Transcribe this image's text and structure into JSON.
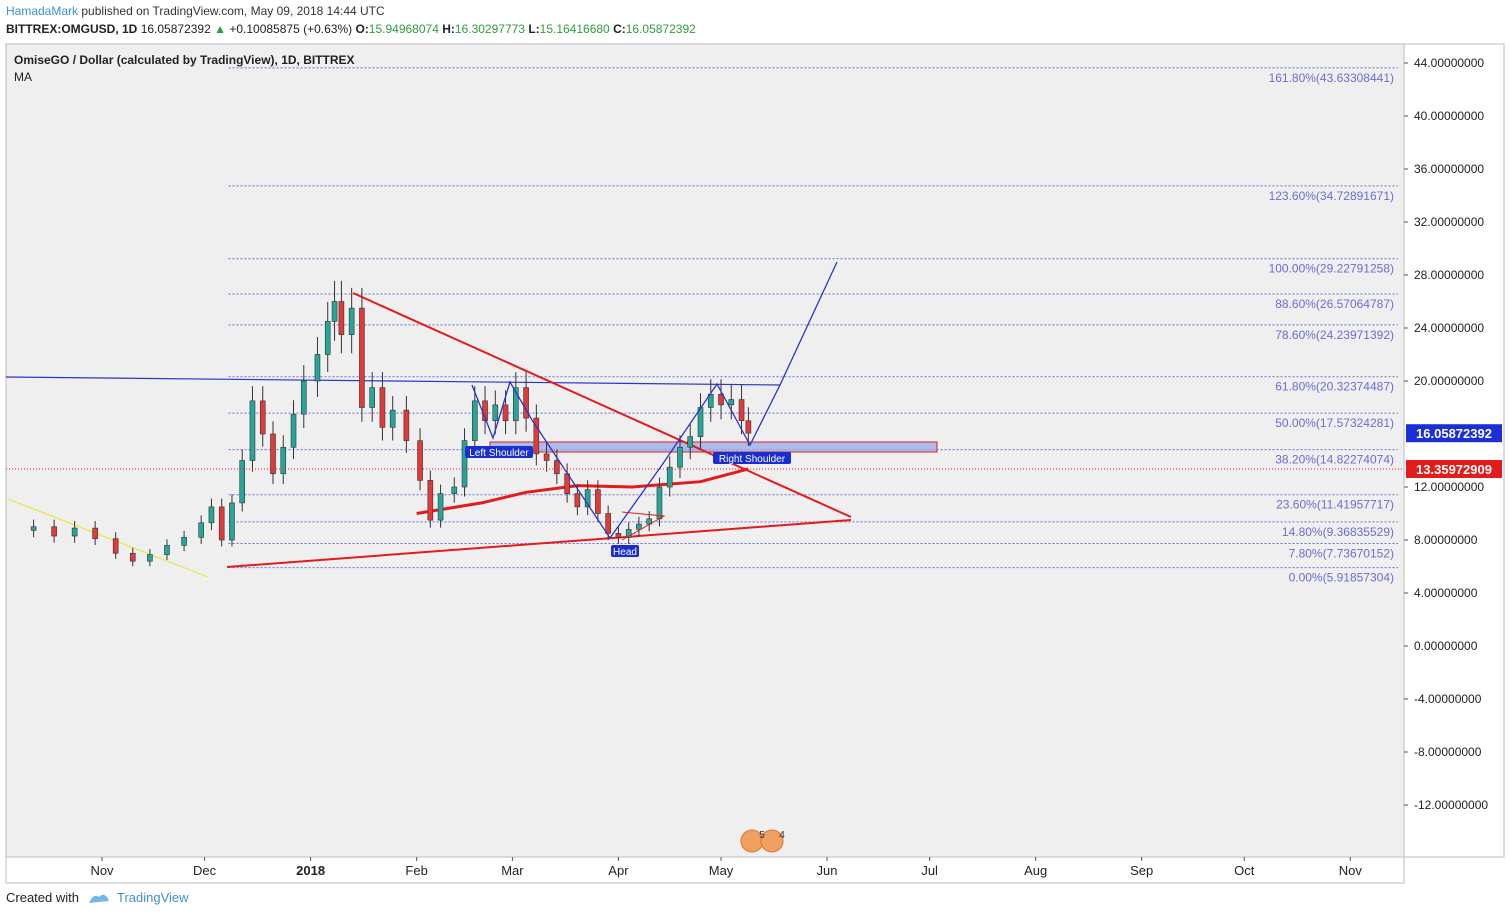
{
  "header": {
    "author": "HamadaMark",
    "published": "published on TradingView.com, May 09, 2018 14:44 UTC",
    "symbol": "BITTREX:OMGUSD, 1D",
    "last": "16.05872392",
    "change": "+0.10085875 (+0.63%)",
    "o_label": "O:",
    "o_val": "15.94968074",
    "h_label": "H:",
    "h_val": "16.30297773",
    "l_label": "L:",
    "l_val": "15.16416680",
    "c_label": "C:",
    "c_val": "16.05872392"
  },
  "legend": {
    "title": "OmiseGO / Dollar (calculated by TradingView), 1D, BITTREX",
    "indicator": "MA"
  },
  "footer": {
    "created_with": "Created with",
    "brand": "TradingView"
  },
  "colors": {
    "bull": "#26a69a",
    "bear": "#e03b3b",
    "fib": "#6b6bd6",
    "blue": "#2a35c9",
    "red": "#e31b1b",
    "yellow": "#e8e840",
    "pane_bg": "#efefef"
  },
  "chart_data": {
    "type": "candlestick",
    "ylim": [
      -15.5,
      45.5
    ],
    "y_ticks": [
      {
        "v": 44,
        "label": "44.00000000"
      },
      {
        "v": 40,
        "label": "40.00000000"
      },
      {
        "v": 36,
        "label": "36.00000000"
      },
      {
        "v": 32,
        "label": "32.00000000"
      },
      {
        "v": 28,
        "label": "28.00000000"
      },
      {
        "v": 24,
        "label": "24.00000000"
      },
      {
        "v": 20,
        "label": "20.00000000"
      },
      {
        "v": 12,
        "label": "12.00000000"
      },
      {
        "v": 8,
        "label": "8.00000000"
      },
      {
        "v": 4,
        "label": "4.00000000"
      },
      {
        "v": 0,
        "label": "0.00000000"
      },
      {
        "v": -4,
        "label": "-4.00000000"
      },
      {
        "v": -8,
        "label": "-8.00000000"
      },
      {
        "v": -12,
        "label": "-12.00000000"
      }
    ],
    "x_ticks": [
      {
        "d": "2017-11-01",
        "label": "Nov",
        "bold": false
      },
      {
        "d": "2017-12-01",
        "label": "Dec",
        "bold": false
      },
      {
        "d": "2018-01-01",
        "label": "2018",
        "bold": true
      },
      {
        "d": "2018-02-01",
        "label": "Feb",
        "bold": false
      },
      {
        "d": "2018-03-01",
        "label": "Mar",
        "bold": false
      },
      {
        "d": "2018-04-01",
        "label": "Apr",
        "bold": false
      },
      {
        "d": "2018-05-01",
        "label": "May",
        "bold": false
      },
      {
        "d": "2018-06-01",
        "label": "Jun",
        "bold": false
      },
      {
        "d": "2018-07-01",
        "label": "Jul",
        "bold": false
      },
      {
        "d": "2018-08-01",
        "label": "Aug",
        "bold": false
      },
      {
        "d": "2018-09-01",
        "label": "Sep",
        "bold": false
      },
      {
        "d": "2018-10-01",
        "label": "Oct",
        "bold": false
      },
      {
        "d": "2018-11-01",
        "label": "Nov",
        "bold": false
      }
    ],
    "price_tags": [
      {
        "v": 16.05872392,
        "label": "16.05872392",
        "color": "#1c2fd6"
      },
      {
        "v": 13.35972909,
        "label": "13.35972909",
        "color": "#e31b1b"
      }
    ],
    "fib_start": "2017-12-08",
    "fib_levels": [
      {
        "v": 43.63308441,
        "label": "161.80%(43.63308441)"
      },
      {
        "v": 34.72891671,
        "label": "123.60%(34.72891671)"
      },
      {
        "v": 29.22791258,
        "label": "100.00%(29.22791258)"
      },
      {
        "v": 26.57064787,
        "label": "88.60%(26.57064787)"
      },
      {
        "v": 24.23971392,
        "label": "78.60%(24.23971392)"
      },
      {
        "v": 20.32374487,
        "label": "61.80%(20.32374487)"
      },
      {
        "v": 17.57324281,
        "label": "50.00%(17.57324281)"
      },
      {
        "v": 14.82274074,
        "label": "38.20%(14.82274074)"
      },
      {
        "v": 11.41957717,
        "label": "23.60%(11.41957717)"
      },
      {
        "v": 9.36835529,
        "label": "14.80%(9.36835529)"
      },
      {
        "v": 7.73670152,
        "label": "7.80%(7.73670152)"
      },
      {
        "v": 5.91857304,
        "label": "0.00%(5.91857304)"
      }
    ],
    "candles_close": [
      [
        "2017-10-12",
        9.0
      ],
      [
        "2017-10-18",
        8.3
      ],
      [
        "2017-10-24",
        8.9
      ],
      [
        "2017-10-30",
        8.1
      ],
      [
        "2017-11-05",
        7.0
      ],
      [
        "2017-11-10",
        6.4
      ],
      [
        "2017-11-15",
        6.9
      ],
      [
        "2017-11-20",
        7.6
      ],
      [
        "2017-11-25",
        8.2
      ],
      [
        "2017-11-30",
        9.3
      ],
      [
        "2017-12-03",
        10.5
      ],
      [
        "2017-12-06",
        8.0
      ],
      [
        "2017-12-09",
        10.8
      ],
      [
        "2017-12-12",
        14.0
      ],
      [
        "2017-12-15",
        18.5
      ],
      [
        "2017-12-18",
        16.0
      ],
      [
        "2017-12-21",
        13.0
      ],
      [
        "2017-12-24",
        15.0
      ],
      [
        "2017-12-27",
        17.5
      ],
      [
        "2017-12-30",
        20.0
      ],
      [
        "2018-01-03",
        22.0
      ],
      [
        "2018-01-06",
        24.5
      ],
      [
        "2018-01-08",
        26.0
      ],
      [
        "2018-01-10",
        23.5
      ],
      [
        "2018-01-13",
        25.5
      ],
      [
        "2018-01-16",
        18.0
      ],
      [
        "2018-01-19",
        19.5
      ],
      [
        "2018-01-22",
        16.5
      ],
      [
        "2018-01-25",
        17.8
      ],
      [
        "2018-01-29",
        15.5
      ],
      [
        "2018-02-02",
        12.5
      ],
      [
        "2018-02-05",
        9.5
      ],
      [
        "2018-02-08",
        11.5
      ],
      [
        "2018-02-12",
        12.0
      ],
      [
        "2018-02-15",
        15.5
      ],
      [
        "2018-02-18",
        18.5
      ],
      [
        "2018-02-21",
        17.0
      ],
      [
        "2018-02-24",
        18.2
      ],
      [
        "2018-02-27",
        17.0
      ],
      [
        "2018-03-02",
        19.5
      ],
      [
        "2018-03-05",
        17.2
      ],
      [
        "2018-03-08",
        14.5
      ],
      [
        "2018-03-11",
        14.0
      ],
      [
        "2018-03-14",
        13.0
      ],
      [
        "2018-03-17",
        11.5
      ],
      [
        "2018-03-20",
        10.5
      ],
      [
        "2018-03-23",
        11.8
      ],
      [
        "2018-03-26",
        10.0
      ],
      [
        "2018-03-29",
        8.5
      ],
      [
        "2018-04-01",
        8.2
      ],
      [
        "2018-04-04",
        8.8
      ],
      [
        "2018-04-07",
        9.2
      ],
      [
        "2018-04-10",
        9.6
      ],
      [
        "2018-04-13",
        12.0
      ],
      [
        "2018-04-16",
        13.5
      ],
      [
        "2018-04-19",
        15.0
      ],
      [
        "2018-04-22",
        15.8
      ],
      [
        "2018-04-25",
        18.0
      ],
      [
        "2018-04-28",
        19.0
      ],
      [
        "2018-05-01",
        18.2
      ],
      [
        "2018-05-04",
        18.6
      ],
      [
        "2018-05-07",
        17.0
      ],
      [
        "2018-05-09",
        16.06
      ]
    ],
    "ma_series": [
      [
        "2018-02-01",
        10.0
      ],
      [
        "2018-02-20",
        10.8
      ],
      [
        "2018-03-05",
        11.6
      ],
      [
        "2018-03-20",
        12.1
      ],
      [
        "2018-04-05",
        12.0
      ],
      [
        "2018-04-25",
        12.4
      ],
      [
        "2018-05-09",
        13.36
      ]
    ]
  },
  "annotations": {
    "left_shoulder": "Left Shoulder",
    "head": "Head",
    "right_shoulder": "Right Shoulder"
  },
  "events_badge": {
    "count_a": "5",
    "count_b": "4"
  }
}
